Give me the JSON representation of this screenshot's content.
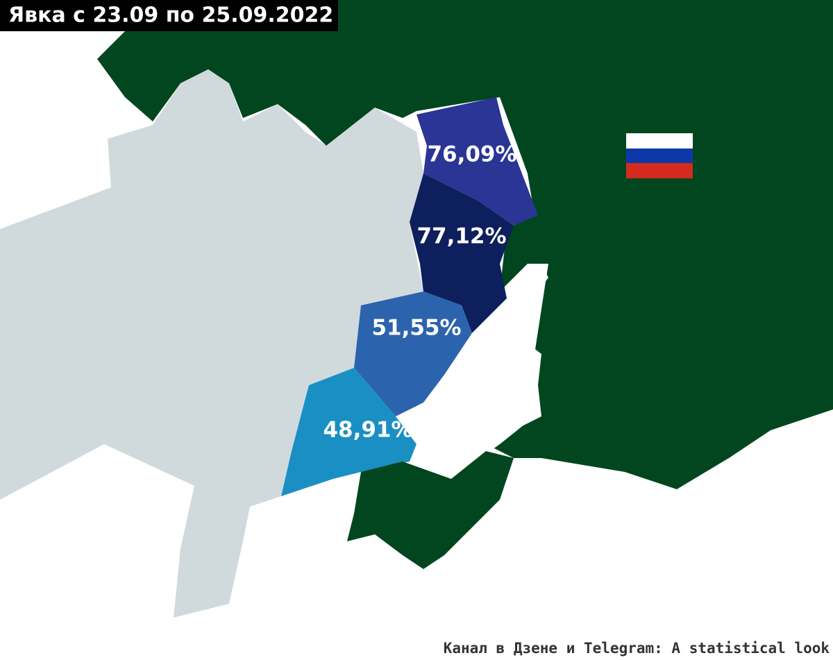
{
  "title": "Явка с 23.09 по 25.09.2022",
  "regions": [
    {
      "label": "76,09%"
    },
    {
      "label": "77,12%"
    },
    {
      "label": "51,55%"
    },
    {
      "label": "48,91%"
    }
  ],
  "credit": "Канал в Дзене и Telegram: A statistical look"
}
